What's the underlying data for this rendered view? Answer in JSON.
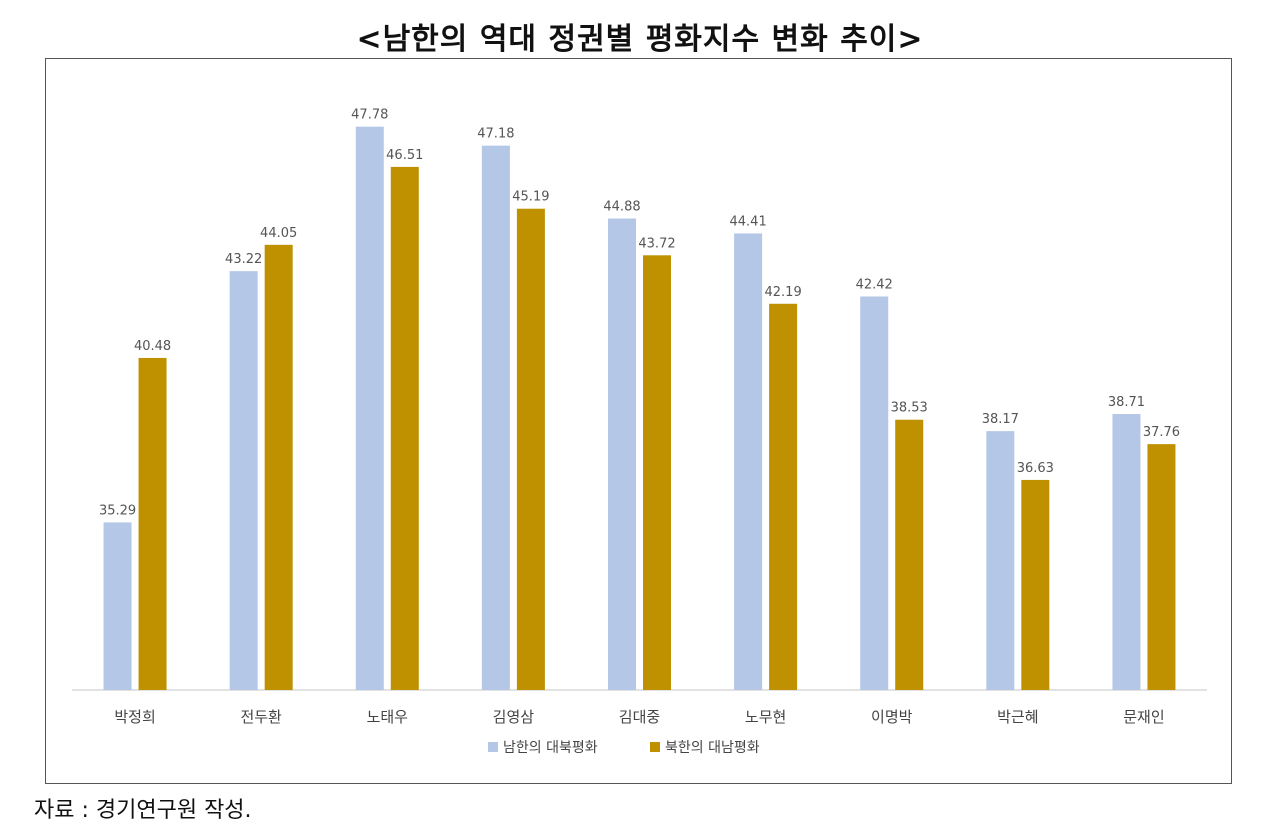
{
  "title": "<남한의 역대 정권별 평화지수 변화 추이>",
  "source": "자료 : 경기연구원 작성.",
  "colors": {
    "south": "#B4C7E7",
    "north": "#BF9000",
    "axis": "#D9D9D9"
  },
  "chart_data": {
    "type": "bar",
    "categories": [
      "박정희",
      "전두환",
      "노태우",
      "김영삼",
      "김대중",
      "노무현",
      "이명박",
      "박근혜",
      "문재인"
    ],
    "series": [
      {
        "name": "남한의 대북평화",
        "values": [
          35.29,
          43.22,
          47.78,
          47.18,
          44.88,
          44.41,
          42.42,
          38.17,
          38.71
        ]
      },
      {
        "name": "북한의 대남평화",
        "values": [
          40.48,
          44.05,
          46.51,
          45.19,
          43.72,
          42.19,
          38.53,
          36.63,
          37.76
        ]
      }
    ],
    "ylim": [
      30,
      49
    ],
    "grid": false,
    "legend": "bottom",
    "data_labels": true
  }
}
